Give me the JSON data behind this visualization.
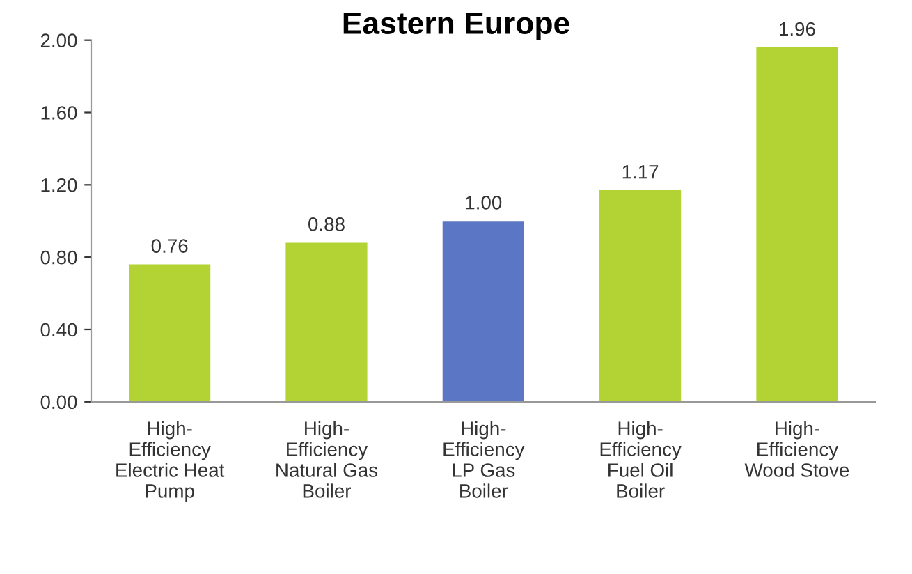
{
  "chart_data": {
    "type": "bar",
    "title": "Eastern Europe",
    "categories": [
      "High-\nEfficiency\nElectric Heat\nPump",
      "High-\nEfficiency\nNatural Gas\nBoiler",
      "High-\nEfficiency\nLP Gas\nBoiler",
      "High-\nEfficiency\nFuel Oil\nBoiler",
      "High-\nEfficiency\nWood Stove"
    ],
    "values": [
      0.76,
      0.88,
      1.0,
      1.17,
      1.96
    ],
    "value_labels": [
      "0.76",
      "0.88",
      "1.00",
      "1.17",
      "1.96"
    ],
    "colors": [
      "#b3d335",
      "#b3d335",
      "#5b76c4",
      "#b3d335",
      "#b3d335"
    ],
    "ylim": [
      0,
      2.0
    ],
    "yticks": [
      {
        "value": 0,
        "label": "0.00"
      },
      {
        "value": 0.4,
        "label": "0.40"
      },
      {
        "value": 0.8,
        "label": "0.80"
      },
      {
        "value": 1.2,
        "label": "1.20"
      },
      {
        "value": 1.6,
        "label": "1.60"
      },
      {
        "value": 2.0,
        "label": "2.00"
      }
    ],
    "grid": false,
    "legend": false
  }
}
